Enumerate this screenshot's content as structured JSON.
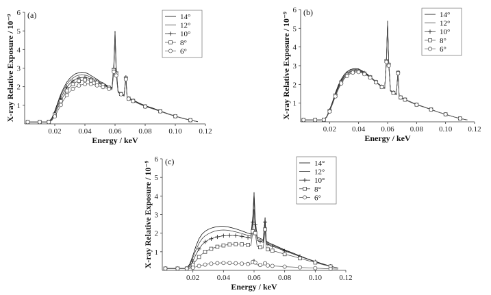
{
  "chart_data": [
    {
      "type": "line",
      "panel_label": "(a)",
      "xlabel": "Energy / keV",
      "ylabel": "X-ray Relative Exposure / 10⁻⁹",
      "xlim": [
        0,
        0.12
      ],
      "ylim": [
        0,
        6
      ],
      "xticks": [
        "0.02",
        "0.04",
        "0.06",
        "0.08",
        "0.10",
        "0.12"
      ],
      "yticks": [
        "1",
        "2",
        "3",
        "4",
        "5",
        "6"
      ],
      "legend": [
        "14°",
        "12°",
        "10°",
        "8°",
        "6°"
      ],
      "x": [
        0.002,
        0.006,
        0.01,
        0.014,
        0.016,
        0.018,
        0.02,
        0.022,
        0.024,
        0.026,
        0.028,
        0.03,
        0.032,
        0.034,
        0.036,
        0.038,
        0.04,
        0.042,
        0.044,
        0.046,
        0.048,
        0.05,
        0.052,
        0.054,
        0.056,
        0.058,
        0.0592,
        0.06,
        0.0608,
        0.062,
        0.064,
        0.066,
        0.0672,
        0.068,
        0.069,
        0.07,
        0.072,
        0.076,
        0.08,
        0.085,
        0.09,
        0.095,
        0.1,
        0.105,
        0.11,
        0.115
      ],
      "series": [
        {
          "name": "14°",
          "values": [
            0.1,
            0.1,
            0.1,
            0.1,
            0.12,
            0.3,
            0.7,
            1.15,
            1.6,
            1.95,
            2.25,
            2.45,
            2.6,
            2.7,
            2.75,
            2.78,
            2.76,
            2.7,
            2.6,
            2.5,
            2.4,
            2.28,
            2.2,
            2.1,
            2.0,
            1.95,
            3.2,
            5.0,
            3.0,
            1.75,
            1.65,
            1.55,
            2.6,
            1.45,
            1.4,
            1.35,
            1.28,
            1.12,
            0.98,
            0.85,
            0.7,
            0.55,
            0.42,
            0.3,
            0.2,
            0.12
          ]
        },
        {
          "name": "12°",
          "values": [
            0.1,
            0.1,
            0.1,
            0.1,
            0.12,
            0.28,
            0.65,
            1.08,
            1.52,
            1.85,
            2.13,
            2.33,
            2.47,
            2.57,
            2.62,
            2.65,
            2.63,
            2.58,
            2.5,
            2.42,
            2.33,
            2.23,
            2.15,
            2.07,
            1.98,
            1.93,
            3.1,
            4.9,
            2.9,
            1.73,
            1.63,
            1.53,
            2.55,
            1.43,
            1.38,
            1.33,
            1.26,
            1.1,
            0.96,
            0.84,
            0.69,
            0.55,
            0.42,
            0.3,
            0.2,
            0.12
          ]
        },
        {
          "name": "10°",
          "values": [
            0.1,
            0.1,
            0.1,
            0.1,
            0.11,
            0.25,
            0.58,
            0.97,
            1.38,
            1.7,
            1.97,
            2.17,
            2.31,
            2.41,
            2.47,
            2.5,
            2.5,
            2.47,
            2.42,
            2.35,
            2.28,
            2.19,
            2.12,
            2.04,
            1.96,
            1.91,
            3.0,
            4.8,
            2.8,
            1.72,
            1.62,
            1.52,
            2.5,
            1.42,
            1.37,
            1.32,
            1.25,
            1.09,
            0.95,
            0.83,
            0.68,
            0.54,
            0.41,
            0.3,
            0.2,
            0.12
          ]
        },
        {
          "name": "8°",
          "values": [
            0.1,
            0.1,
            0.1,
            0.1,
            0.11,
            0.22,
            0.5,
            0.85,
            1.22,
            1.53,
            1.79,
            1.98,
            2.13,
            2.24,
            2.31,
            2.35,
            2.37,
            2.36,
            2.33,
            2.28,
            2.22,
            2.15,
            2.08,
            2.01,
            1.94,
            1.89,
            2.9,
            4.7,
            2.7,
            1.71,
            1.61,
            1.51,
            2.45,
            1.41,
            1.36,
            1.31,
            1.24,
            1.08,
            0.94,
            0.82,
            0.68,
            0.54,
            0.41,
            0.3,
            0.2,
            0.12
          ]
        },
        {
          "name": "6°",
          "values": [
            0.1,
            0.1,
            0.1,
            0.1,
            0.1,
            0.18,
            0.4,
            0.7,
            1.02,
            1.3,
            1.54,
            1.73,
            1.88,
            1.99,
            2.06,
            2.11,
            2.14,
            2.15,
            2.14,
            2.11,
            2.07,
            2.02,
            1.98,
            1.93,
            1.88,
            1.84,
            2.8,
            4.6,
            2.6,
            1.69,
            1.59,
            1.49,
            2.4,
            1.4,
            1.35,
            1.3,
            1.23,
            1.07,
            0.93,
            0.81,
            0.67,
            0.53,
            0.41,
            0.29,
            0.2,
            0.12
          ]
        }
      ]
    },
    {
      "type": "line",
      "panel_label": "(b)",
      "xlabel": "Energy / keV",
      "ylabel": "X-ray Relative Exposure / 10⁻⁹",
      "xlim": [
        0,
        0.12
      ],
      "ylim": [
        0,
        6
      ],
      "xticks": [
        "0.02",
        "0.04",
        "0.06",
        "0.08",
        "0.10",
        "0.12"
      ],
      "yticks": [
        "1",
        "2",
        "3",
        "4",
        "5",
        "6"
      ],
      "legend": [
        "14°",
        "12°",
        "10°",
        "8°",
        "6°"
      ],
      "x": [
        0.002,
        0.006,
        0.01,
        0.014,
        0.016,
        0.018,
        0.02,
        0.022,
        0.024,
        0.026,
        0.028,
        0.03,
        0.032,
        0.034,
        0.036,
        0.038,
        0.04,
        0.042,
        0.044,
        0.046,
        0.048,
        0.05,
        0.052,
        0.054,
        0.056,
        0.058,
        0.0592,
        0.06,
        0.0608,
        0.062,
        0.064,
        0.066,
        0.0672,
        0.068,
        0.069,
        0.07,
        0.072,
        0.076,
        0.08,
        0.085,
        0.09,
        0.095,
        0.1,
        0.105,
        0.11,
        0.115
      ],
      "series": [
        {
          "name": "14°",
          "values": [
            0.1,
            0.1,
            0.1,
            0.1,
            0.12,
            0.28,
            0.65,
            1.08,
            1.55,
            1.95,
            2.28,
            2.52,
            2.68,
            2.78,
            2.83,
            2.85,
            2.82,
            2.75,
            2.65,
            2.55,
            2.42,
            2.28,
            2.15,
            2.02,
            1.9,
            1.82,
            3.4,
            5.4,
            3.2,
            1.68,
            1.58,
            1.48,
            2.7,
            1.38,
            1.33,
            1.28,
            1.2,
            1.06,
            0.93,
            0.8,
            0.66,
            0.52,
            0.4,
            0.28,
            0.18,
            0.1
          ]
        },
        {
          "name": "12°",
          "values": [
            0.1,
            0.1,
            0.1,
            0.1,
            0.12,
            0.27,
            0.63,
            1.05,
            1.5,
            1.9,
            2.22,
            2.46,
            2.62,
            2.72,
            2.78,
            2.8,
            2.78,
            2.72,
            2.63,
            2.53,
            2.4,
            2.27,
            2.14,
            2.01,
            1.89,
            1.81,
            3.35,
            5.35,
            3.15,
            1.67,
            1.57,
            1.47,
            2.68,
            1.37,
            1.32,
            1.27,
            1.2,
            1.06,
            0.93,
            0.8,
            0.66,
            0.52,
            0.4,
            0.28,
            0.18,
            0.1
          ]
        },
        {
          "name": "10°",
          "values": [
            0.1,
            0.1,
            0.1,
            0.1,
            0.11,
            0.26,
            0.61,
            1.02,
            1.46,
            1.85,
            2.17,
            2.41,
            2.57,
            2.67,
            2.73,
            2.76,
            2.74,
            2.69,
            2.61,
            2.51,
            2.39,
            2.26,
            2.13,
            2.0,
            1.88,
            1.8,
            3.3,
            5.3,
            3.1,
            1.66,
            1.56,
            1.46,
            2.65,
            1.36,
            1.31,
            1.27,
            1.2,
            1.05,
            0.92,
            0.8,
            0.66,
            0.52,
            0.4,
            0.28,
            0.18,
            0.1
          ]
        },
        {
          "name": "8°",
          "values": [
            0.1,
            0.1,
            0.1,
            0.1,
            0.11,
            0.25,
            0.58,
            0.98,
            1.41,
            1.79,
            2.11,
            2.35,
            2.51,
            2.62,
            2.68,
            2.71,
            2.7,
            2.66,
            2.58,
            2.49,
            2.38,
            2.25,
            2.12,
            1.99,
            1.87,
            1.79,
            3.25,
            5.25,
            3.05,
            1.65,
            1.55,
            1.45,
            2.62,
            1.35,
            1.3,
            1.26,
            1.19,
            1.05,
            0.92,
            0.79,
            0.66,
            0.52,
            0.4,
            0.28,
            0.18,
            0.1
          ]
        },
        {
          "name": "6°",
          "values": [
            0.1,
            0.1,
            0.1,
            0.1,
            0.11,
            0.24,
            0.55,
            0.94,
            1.36,
            1.73,
            2.05,
            2.29,
            2.45,
            2.56,
            2.63,
            2.66,
            2.66,
            2.62,
            2.55,
            2.47,
            2.36,
            2.24,
            2.11,
            1.98,
            1.86,
            1.78,
            3.2,
            5.2,
            3.0,
            1.64,
            1.54,
            1.44,
            2.6,
            1.34,
            1.3,
            1.25,
            1.18,
            1.04,
            0.91,
            0.79,
            0.65,
            0.52,
            0.4,
            0.28,
            0.18,
            0.1
          ]
        }
      ]
    },
    {
      "type": "line",
      "panel_label": "(c)",
      "xlabel": "Energy / keV",
      "ylabel": "X-ray Relative Exposure / 10⁻⁹",
      "xlim": [
        0,
        0.12
      ],
      "ylim": [
        0,
        6
      ],
      "xticks": [
        "0.02",
        "0.04",
        "0.06",
        "0.08",
        "0.10",
        "0.12"
      ],
      "yticks": [
        "1",
        "2",
        "3",
        "4",
        "5",
        "6"
      ],
      "legend": [
        "14°",
        "12°",
        "10°",
        "8°",
        "6°"
      ],
      "x": [
        0.002,
        0.006,
        0.01,
        0.014,
        0.016,
        0.018,
        0.02,
        0.022,
        0.024,
        0.026,
        0.028,
        0.03,
        0.032,
        0.034,
        0.036,
        0.038,
        0.04,
        0.042,
        0.044,
        0.046,
        0.048,
        0.05,
        0.052,
        0.054,
        0.056,
        0.058,
        0.0592,
        0.06,
        0.0608,
        0.062,
        0.064,
        0.066,
        0.0672,
        0.068,
        0.069,
        0.07,
        0.072,
        0.076,
        0.08,
        0.085,
        0.09,
        0.095,
        0.1,
        0.105,
        0.11,
        0.115
      ],
      "series": [
        {
          "name": "14°",
          "values": [
            0.1,
            0.1,
            0.1,
            0.1,
            0.12,
            0.35,
            0.8,
            1.3,
            1.7,
            1.95,
            2.1,
            2.2,
            2.27,
            2.32,
            2.35,
            2.37,
            2.37,
            2.35,
            2.32,
            2.28,
            2.23,
            2.18,
            2.12,
            2.06,
            2.0,
            1.95,
            2.9,
            4.2,
            2.7,
            1.8,
            1.72,
            1.65,
            2.85,
            1.58,
            1.52,
            1.47,
            1.4,
            1.25,
            1.1,
            0.95,
            0.78,
            0.62,
            0.48,
            0.35,
            0.22,
            0.12
          ]
        },
        {
          "name": "12°",
          "values": [
            0.1,
            0.1,
            0.1,
            0.1,
            0.11,
            0.3,
            0.68,
            1.1,
            1.45,
            1.7,
            1.86,
            1.96,
            2.04,
            2.1,
            2.14,
            2.16,
            2.17,
            2.16,
            2.14,
            2.11,
            2.07,
            2.03,
            1.98,
            1.93,
            1.88,
            1.84,
            2.8,
            4.1,
            2.6,
            1.72,
            1.65,
            1.58,
            2.75,
            1.52,
            1.46,
            1.41,
            1.35,
            1.21,
            1.07,
            0.93,
            0.77,
            0.61,
            0.47,
            0.34,
            0.22,
            0.12
          ]
        },
        {
          "name": "10°",
          "values": [
            0.1,
            0.1,
            0.1,
            0.1,
            0.1,
            0.22,
            0.5,
            0.85,
            1.15,
            1.38,
            1.53,
            1.63,
            1.7,
            1.76,
            1.8,
            1.83,
            1.86,
            1.87,
            1.88,
            1.88,
            1.87,
            1.85,
            1.83,
            1.8,
            1.76,
            1.73,
            2.6,
            3.9,
            2.45,
            1.62,
            1.56,
            1.5,
            2.6,
            1.45,
            1.4,
            1.36,
            1.3,
            1.17,
            1.04,
            0.9,
            0.75,
            0.6,
            0.46,
            0.34,
            0.22,
            0.12
          ]
        },
        {
          "name": "8°",
          "values": [
            0.1,
            0.1,
            0.1,
            0.1,
            0.1,
            0.14,
            0.3,
            0.52,
            0.72,
            0.88,
            1.0,
            1.09,
            1.16,
            1.22,
            1.27,
            1.31,
            1.34,
            1.37,
            1.39,
            1.4,
            1.41,
            1.41,
            1.4,
            1.39,
            1.37,
            1.35,
            2.1,
            3.3,
            2.0,
            1.28,
            1.24,
            1.2,
            2.2,
            1.16,
            1.13,
            1.1,
            1.06,
            0.97,
            0.87,
            0.77,
            0.65,
            0.53,
            0.42,
            0.31,
            0.21,
            0.12
          ]
        },
        {
          "name": "6°",
          "values": [
            0.1,
            0.1,
            0.1,
            0.1,
            0.1,
            0.11,
            0.14,
            0.19,
            0.24,
            0.28,
            0.31,
            0.34,
            0.36,
            0.38,
            0.39,
            0.4,
            0.4,
            0.4,
            0.4,
            0.39,
            0.38,
            0.37,
            0.36,
            0.35,
            0.34,
            0.33,
            0.45,
            0.6,
            0.42,
            0.3,
            0.29,
            0.28,
            0.38,
            0.27,
            0.26,
            0.25,
            0.24,
            0.22,
            0.2,
            0.18,
            0.16,
            0.14,
            0.12,
            0.1,
            0.08,
            0.07
          ]
        }
      ]
    }
  ]
}
